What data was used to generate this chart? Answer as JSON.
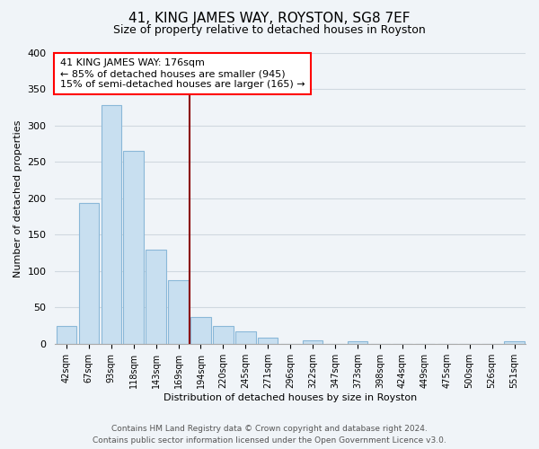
{
  "title": "41, KING JAMES WAY, ROYSTON, SG8 7EF",
  "subtitle": "Size of property relative to detached houses in Royston",
  "xlabel": "Distribution of detached houses by size in Royston",
  "ylabel": "Number of detached properties",
  "bar_labels": [
    "42sqm",
    "67sqm",
    "93sqm",
    "118sqm",
    "143sqm",
    "169sqm",
    "194sqm",
    "220sqm",
    "245sqm",
    "271sqm",
    "296sqm",
    "322sqm",
    "347sqm",
    "373sqm",
    "398sqm",
    "424sqm",
    "449sqm",
    "475sqm",
    "500sqm",
    "526sqm",
    "551sqm"
  ],
  "bar_values": [
    25,
    194,
    328,
    265,
    130,
    88,
    37,
    25,
    17,
    8,
    0,
    5,
    0,
    3,
    0,
    0,
    0,
    0,
    0,
    0,
    3
  ],
  "bar_color": "#c8dff0",
  "bar_edge_color": "#8ab8d8",
  "ylim": [
    0,
    400
  ],
  "yticks": [
    0,
    50,
    100,
    150,
    200,
    250,
    300,
    350,
    400
  ],
  "property_line_x": 5.5,
  "annot_title": "41 KING JAMES WAY: 176sqm",
  "annot_line1": "← 85% of detached houses are smaller (945)",
  "annot_line2": "15% of semi-detached houses are larger (165) →",
  "footer1": "Contains HM Land Registry data © Crown copyright and database right 2024.",
  "footer2": "Contains public sector information licensed under the Open Government Licence v3.0.",
  "bg_color": "#f0f4f8",
  "grid_color": "#d0d8e0",
  "title_fontsize": 11,
  "subtitle_fontsize": 9,
  "ylabel_fontsize": 8,
  "xlabel_fontsize": 8,
  "tick_fontsize": 7,
  "footer_fontsize": 6.5,
  "annot_fontsize": 8
}
